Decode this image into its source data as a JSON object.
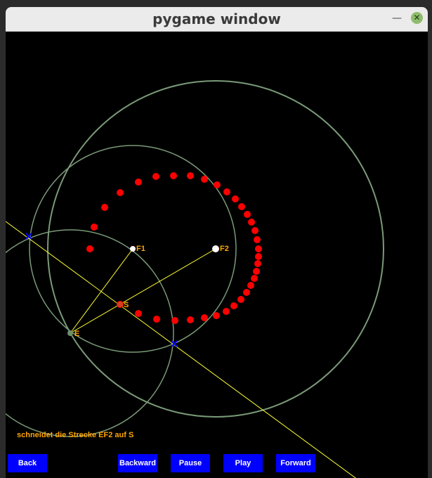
{
  "window": {
    "title": "pygame window"
  },
  "status_text": "schneidet die Strecke EF2 auf S",
  "buttons": {
    "back": "Back",
    "backward": "Backward",
    "pause": "Pause",
    "play": "Play",
    "forward": "Forward"
  },
  "points": {
    "f1": "F1",
    "f2": "F2",
    "s": "S",
    "e": "E"
  },
  "colors": {
    "background": "#000000",
    "circle": "#7a9a78",
    "line": "#ffff33",
    "ellipse_dots": "#ff0000",
    "labels": "#ffa500",
    "buttons": "#0000ff",
    "intersections": "#0000ff"
  }
}
